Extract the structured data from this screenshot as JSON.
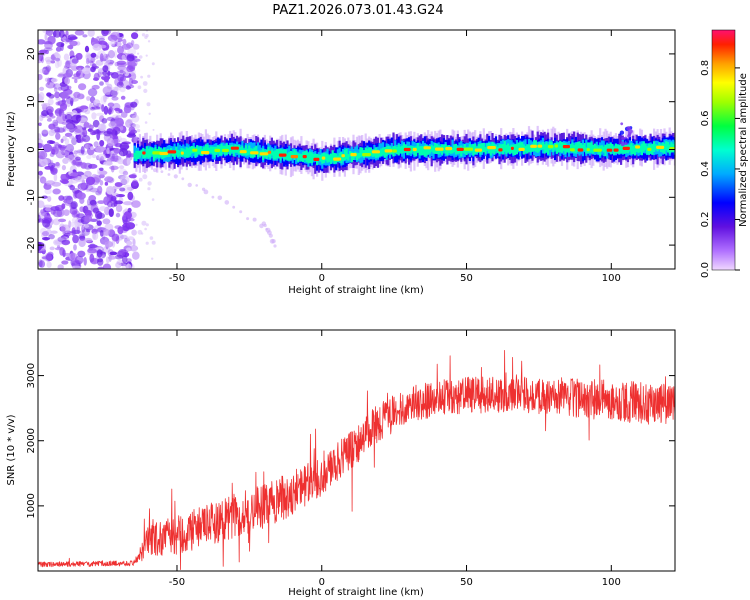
{
  "figure": {
    "title": "PAZ1.2026.073.01.43.G24"
  },
  "chart_data": [
    {
      "type": "heatmap",
      "panel": "spectrogram",
      "xlabel": "Height of straight line (km)",
      "ylabel": "Frequency (Hz)",
      "xlim": [
        -98,
        122
      ],
      "ylim": [
        -25,
        25
      ],
      "xticks": [
        -50,
        0,
        50,
        100
      ],
      "yticks": [
        -20,
        -10,
        0,
        10,
        20
      ],
      "colorbar": {
        "label": "Normalized spectral amplitude",
        "range": [
          0.0,
          0.95
        ],
        "ticks": [
          0.0,
          0.2,
          0.4,
          0.6,
          0.8
        ],
        "colormap": "rainbow (violet → red)"
      },
      "signal_band": {
        "description": "Narrow high-amplitude band near 0 Hz from about -65 km up to 122 km",
        "start_km": -65,
        "end_km": 122,
        "center_hz": [
          [
            -65,
            -1
          ],
          [
            -30,
            0
          ],
          [
            0,
            -2
          ],
          [
            25,
            0
          ],
          [
            50,
            0
          ],
          [
            75,
            0.5
          ],
          [
            100,
            0
          ],
          [
            122,
            0.5
          ]
        ],
        "halfwidth_hz": 2
      },
      "noise_region": {
        "description": "Scattered low-amplitude purple blobs across all frequencies",
        "from_km": -98,
        "to_km": -64
      },
      "faint_streak": {
        "description": "Faint diagonal streak descending from the band",
        "points": [
          [
            -60,
            -3
          ],
          [
            -40,
            -9
          ],
          [
            -20,
            -16
          ],
          [
            -16,
            -20
          ]
        ]
      }
    },
    {
      "type": "line",
      "panel": "snr",
      "xlabel": "Height of straight line (km)",
      "ylabel": "SNR (10 * v/v)",
      "xlim": [
        -98,
        122
      ],
      "ylim": [
        0,
        3700
      ],
      "xticks": [
        -50,
        0,
        50,
        100
      ],
      "yticks": [
        1000,
        2000,
        3000
      ],
      "series": [
        {
          "name": "SNR",
          "color": "#ee3030",
          "trend_x": [
            -98,
            -65,
            -60,
            -50,
            -40,
            -30,
            -20,
            -10,
            0,
            10,
            20,
            30,
            40,
            50,
            60,
            70,
            80,
            90,
            100,
            110,
            122
          ],
          "trend_y": [
            100,
            120,
            450,
            550,
            700,
            850,
            1000,
            1200,
            1450,
            1850,
            2300,
            2550,
            2650,
            2700,
            2700,
            2700,
            2680,
            2650,
            2620,
            2580,
            2550
          ],
          "noise_amplitude": [
            40,
            40,
            250,
            300,
            320,
            350,
            350,
            350,
            300,
            300,
            300,
            280,
            280,
            280,
            280,
            280,
            300,
            300,
            320,
            320,
            320
          ]
        }
      ]
    }
  ]
}
